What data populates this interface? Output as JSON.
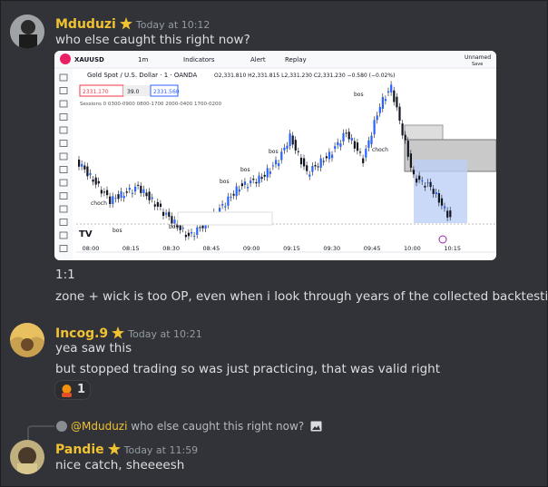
{
  "messages": [
    {
      "author": "Mduduzi",
      "timestamp": "Today at 10:12",
      "lines": [
        "who else caught this right now?"
      ],
      "attachment": {
        "symbol": "XAUUSD",
        "interval": "1m",
        "toolbar": [
          "Indicators",
          "Alert",
          "Replay"
        ],
        "layout_name": "Unnamed",
        "save": "Save",
        "title": "Gold Spot / U.S. Dollar · 1 · OANDA",
        "ohlc": "O2,331.810 H2,331.815 L2,331.230 C2,331.230 −0.580 (−0.02%)",
        "sell": "2331.170",
        "spread": "39.0",
        "buy": "2331.560",
        "indicator_line": "Sessions 0 0300-0900 0800-1700 2000-0400 1700-0200",
        "time_labels": [
          "08:00",
          "08:15",
          "08:30",
          "08:45",
          "09:00",
          "09:15",
          "09:30",
          "09:45",
          "10:00",
          "10:15"
        ],
        "annotations": [
          "choch",
          "bos",
          "bos",
          "bos",
          "bos",
          "bos",
          "choch",
          "bos"
        ]
      },
      "after_lines": [
        "1:1",
        "zone + wick is too OP, even when i look through years of the collected backtesting"
      ]
    },
    {
      "author": "Incog.9",
      "timestamp": "Today at 10:21",
      "lines": [
        "yea saw this",
        "but stopped trading so was just practicing, that was valid right"
      ],
      "reaction_count": "1"
    },
    {
      "author": "Pandie",
      "timestamp": "Today at 11:59",
      "reply": {
        "author": "@Mduduzi",
        "text": "who else caught this right now?"
      },
      "lines": [
        "nice catch, sheeeesh"
      ]
    }
  ]
}
